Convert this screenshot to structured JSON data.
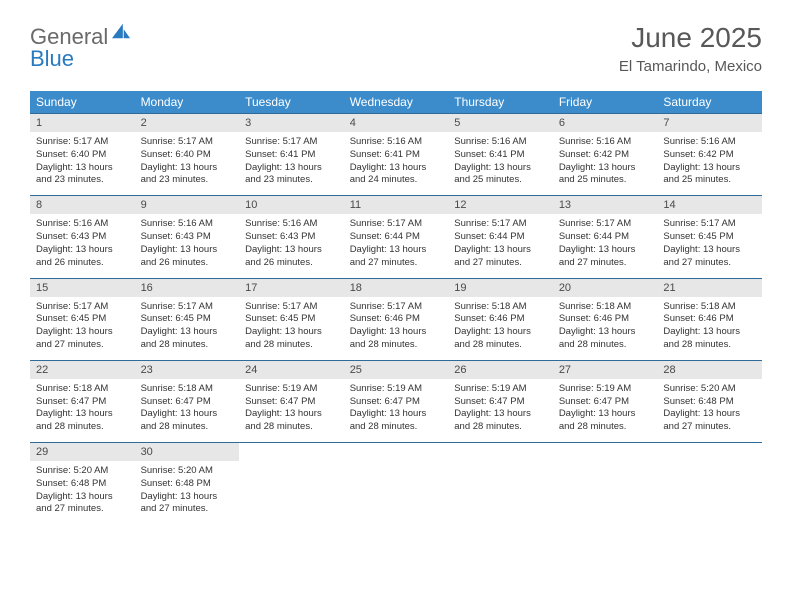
{
  "logo": {
    "word1": "General",
    "word2": "Blue",
    "sail_color": "#2a7ac0",
    "text_gray": "#6a6a6a"
  },
  "header": {
    "title": "June 2025",
    "subtitle": "El Tamarindo, Mexico"
  },
  "colors": {
    "header_bg": "#3c8ccc",
    "header_text": "#ffffff",
    "daynum_bg": "#e7e7e7",
    "rule": "#2f6a9a",
    "body_text": "#333333",
    "title_text": "#585858"
  },
  "fonts": {
    "title_size": 28,
    "subtitle_size": 15,
    "dayheader_size": 12,
    "daynum_size": 11,
    "body_size": 9.5
  },
  "days_of_week": [
    "Sunday",
    "Monday",
    "Tuesday",
    "Wednesday",
    "Thursday",
    "Friday",
    "Saturday"
  ],
  "weeks": [
    [
      {
        "num": "1",
        "sunrise": "Sunrise: 5:17 AM",
        "sunset": "Sunset: 6:40 PM",
        "day1": "Daylight: 13 hours",
        "day2": "and 23 minutes."
      },
      {
        "num": "2",
        "sunrise": "Sunrise: 5:17 AM",
        "sunset": "Sunset: 6:40 PM",
        "day1": "Daylight: 13 hours",
        "day2": "and 23 minutes."
      },
      {
        "num": "3",
        "sunrise": "Sunrise: 5:17 AM",
        "sunset": "Sunset: 6:41 PM",
        "day1": "Daylight: 13 hours",
        "day2": "and 23 minutes."
      },
      {
        "num": "4",
        "sunrise": "Sunrise: 5:16 AM",
        "sunset": "Sunset: 6:41 PM",
        "day1": "Daylight: 13 hours",
        "day2": "and 24 minutes."
      },
      {
        "num": "5",
        "sunrise": "Sunrise: 5:16 AM",
        "sunset": "Sunset: 6:41 PM",
        "day1": "Daylight: 13 hours",
        "day2": "and 25 minutes."
      },
      {
        "num": "6",
        "sunrise": "Sunrise: 5:16 AM",
        "sunset": "Sunset: 6:42 PM",
        "day1": "Daylight: 13 hours",
        "day2": "and 25 minutes."
      },
      {
        "num": "7",
        "sunrise": "Sunrise: 5:16 AM",
        "sunset": "Sunset: 6:42 PM",
        "day1": "Daylight: 13 hours",
        "day2": "and 25 minutes."
      }
    ],
    [
      {
        "num": "8",
        "sunrise": "Sunrise: 5:16 AM",
        "sunset": "Sunset: 6:43 PM",
        "day1": "Daylight: 13 hours",
        "day2": "and 26 minutes."
      },
      {
        "num": "9",
        "sunrise": "Sunrise: 5:16 AM",
        "sunset": "Sunset: 6:43 PM",
        "day1": "Daylight: 13 hours",
        "day2": "and 26 minutes."
      },
      {
        "num": "10",
        "sunrise": "Sunrise: 5:16 AM",
        "sunset": "Sunset: 6:43 PM",
        "day1": "Daylight: 13 hours",
        "day2": "and 26 minutes."
      },
      {
        "num": "11",
        "sunrise": "Sunrise: 5:17 AM",
        "sunset": "Sunset: 6:44 PM",
        "day1": "Daylight: 13 hours",
        "day2": "and 27 minutes."
      },
      {
        "num": "12",
        "sunrise": "Sunrise: 5:17 AM",
        "sunset": "Sunset: 6:44 PM",
        "day1": "Daylight: 13 hours",
        "day2": "and 27 minutes."
      },
      {
        "num": "13",
        "sunrise": "Sunrise: 5:17 AM",
        "sunset": "Sunset: 6:44 PM",
        "day1": "Daylight: 13 hours",
        "day2": "and 27 minutes."
      },
      {
        "num": "14",
        "sunrise": "Sunrise: 5:17 AM",
        "sunset": "Sunset: 6:45 PM",
        "day1": "Daylight: 13 hours",
        "day2": "and 27 minutes."
      }
    ],
    [
      {
        "num": "15",
        "sunrise": "Sunrise: 5:17 AM",
        "sunset": "Sunset: 6:45 PM",
        "day1": "Daylight: 13 hours",
        "day2": "and 27 minutes."
      },
      {
        "num": "16",
        "sunrise": "Sunrise: 5:17 AM",
        "sunset": "Sunset: 6:45 PM",
        "day1": "Daylight: 13 hours",
        "day2": "and 28 minutes."
      },
      {
        "num": "17",
        "sunrise": "Sunrise: 5:17 AM",
        "sunset": "Sunset: 6:45 PM",
        "day1": "Daylight: 13 hours",
        "day2": "and 28 minutes."
      },
      {
        "num": "18",
        "sunrise": "Sunrise: 5:17 AM",
        "sunset": "Sunset: 6:46 PM",
        "day1": "Daylight: 13 hours",
        "day2": "and 28 minutes."
      },
      {
        "num": "19",
        "sunrise": "Sunrise: 5:18 AM",
        "sunset": "Sunset: 6:46 PM",
        "day1": "Daylight: 13 hours",
        "day2": "and 28 minutes."
      },
      {
        "num": "20",
        "sunrise": "Sunrise: 5:18 AM",
        "sunset": "Sunset: 6:46 PM",
        "day1": "Daylight: 13 hours",
        "day2": "and 28 minutes."
      },
      {
        "num": "21",
        "sunrise": "Sunrise: 5:18 AM",
        "sunset": "Sunset: 6:46 PM",
        "day1": "Daylight: 13 hours",
        "day2": "and 28 minutes."
      }
    ],
    [
      {
        "num": "22",
        "sunrise": "Sunrise: 5:18 AM",
        "sunset": "Sunset: 6:47 PM",
        "day1": "Daylight: 13 hours",
        "day2": "and 28 minutes."
      },
      {
        "num": "23",
        "sunrise": "Sunrise: 5:18 AM",
        "sunset": "Sunset: 6:47 PM",
        "day1": "Daylight: 13 hours",
        "day2": "and 28 minutes."
      },
      {
        "num": "24",
        "sunrise": "Sunrise: 5:19 AM",
        "sunset": "Sunset: 6:47 PM",
        "day1": "Daylight: 13 hours",
        "day2": "and 28 minutes."
      },
      {
        "num": "25",
        "sunrise": "Sunrise: 5:19 AM",
        "sunset": "Sunset: 6:47 PM",
        "day1": "Daylight: 13 hours",
        "day2": "and 28 minutes."
      },
      {
        "num": "26",
        "sunrise": "Sunrise: 5:19 AM",
        "sunset": "Sunset: 6:47 PM",
        "day1": "Daylight: 13 hours",
        "day2": "and 28 minutes."
      },
      {
        "num": "27",
        "sunrise": "Sunrise: 5:19 AM",
        "sunset": "Sunset: 6:47 PM",
        "day1": "Daylight: 13 hours",
        "day2": "and 28 minutes."
      },
      {
        "num": "28",
        "sunrise": "Sunrise: 5:20 AM",
        "sunset": "Sunset: 6:48 PM",
        "day1": "Daylight: 13 hours",
        "day2": "and 27 minutes."
      }
    ],
    [
      {
        "num": "29",
        "sunrise": "Sunrise: 5:20 AM",
        "sunset": "Sunset: 6:48 PM",
        "day1": "Daylight: 13 hours",
        "day2": "and 27 minutes."
      },
      {
        "num": "30",
        "sunrise": "Sunrise: 5:20 AM",
        "sunset": "Sunset: 6:48 PM",
        "day1": "Daylight: 13 hours",
        "day2": "and 27 minutes."
      },
      {
        "empty": true
      },
      {
        "empty": true
      },
      {
        "empty": true
      },
      {
        "empty": true
      },
      {
        "empty": true
      }
    ]
  ]
}
